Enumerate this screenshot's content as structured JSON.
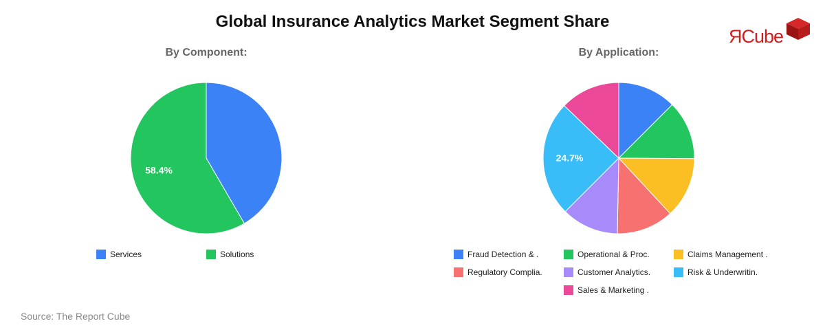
{
  "title": "Global Insurance Analytics Market Segment Share",
  "source": "Source: The Report Cube",
  "logo_text": "ЯCube",
  "colors": {
    "logo_red": "#cc1f1f"
  },
  "chart_data": [
    {
      "type": "pie",
      "subtitle": "By Component:",
      "legend_position": "bottom",
      "slices": [
        {
          "label": "Services",
          "value": 41.6,
          "color": "#3b82f6"
        },
        {
          "label": "Solutions",
          "value": 58.4,
          "color": "#22c55e"
        }
      ],
      "data_labels": [
        {
          "slice": 1,
          "text": "58.4%"
        }
      ]
    },
    {
      "type": "pie",
      "subtitle": "By Application:",
      "legend_position": "bottom",
      "slices": [
        {
          "label": "Fraud Detection & .",
          "value": 12.5,
          "color": "#3b82f6"
        },
        {
          "label": "Operational & Proc.",
          "value": 12.6,
          "color": "#22c55e"
        },
        {
          "label": "Claims Management .",
          "value": 13.0,
          "color": "#fbbf24"
        },
        {
          "label": "Regulatory Complia.",
          "value": 12.2,
          "color": "#f87171"
        },
        {
          "label": "Customer Analytics.",
          "value": 12.2,
          "color": "#a78bfa"
        },
        {
          "label": "Risk & Underwritin.",
          "value": 24.7,
          "color": "#38bdf8"
        },
        {
          "label": "Sales & Marketing .",
          "value": 12.8,
          "color": "#ec4899"
        }
      ],
      "data_labels": [
        {
          "slice": 5,
          "text": "24.7%"
        }
      ]
    }
  ]
}
